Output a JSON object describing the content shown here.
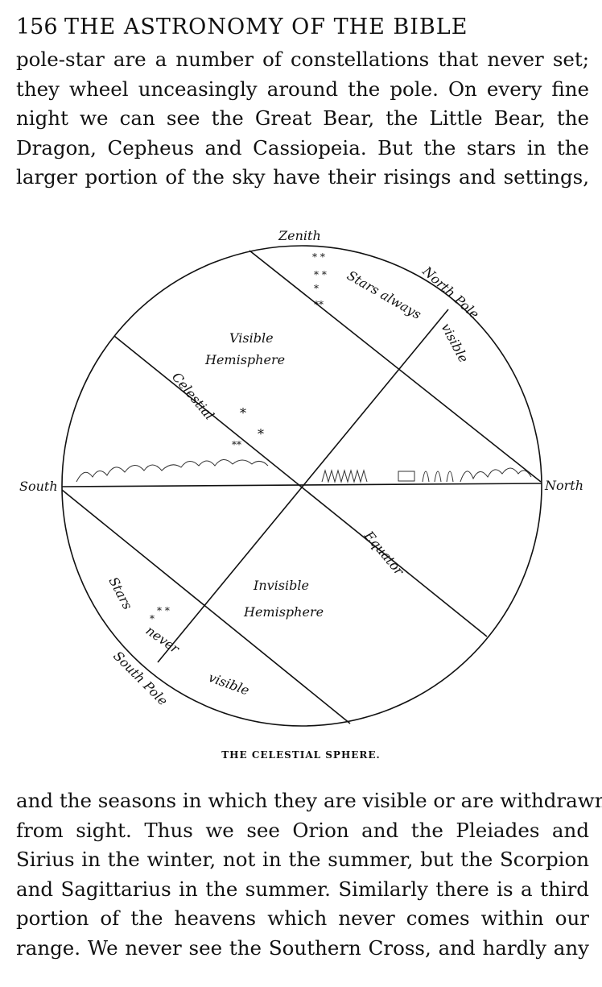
{
  "header": {
    "page_number": "156",
    "running_title": "THE ASTRONOMY OF THE BIBLE"
  },
  "paragraph_top": [
    "pole-star are a number of constellations that never set;",
    "they wheel unceasingly around the pole. On every fine",
    "night we can see the Great Bear, the Little Bear, the",
    "Dragon, Cepheus and Cassiopeia. But the stars in the",
    "larger portion of the sky have their risings and settings,"
  ],
  "figure": {
    "labels": {
      "zenith": "Zenith",
      "north_pole": "North Pole",
      "stars_always": "Stars always",
      "visible_right": "visible",
      "visible_hemisphere_1": "Visible",
      "visible_hemisphere_2": "Hemisphere",
      "celestial": "Celestial",
      "south": "South",
      "north": "North",
      "equator": "Equator",
      "invisible_hemisphere_1": "Invisible",
      "invisible_hemisphere_2": "Hemisphere",
      "stars": "Stars",
      "never": "never",
      "visible_bottom": "visible",
      "south_pole": "South Pole"
    },
    "caption": "THE CELESTIAL SPHERE."
  },
  "paragraph_bottom": [
    "and the seasons in which they are visible or are withdrawn",
    "from sight. Thus we see Orion and the Pleiades and",
    "Sirius in the winter, not in the summer, but the Scorpion",
    "and Sagittarius in the summer. Similarly there is a third",
    "portion of the heavens which never comes within our",
    "range. We never see the Southern Cross, and hardly any"
  ]
}
